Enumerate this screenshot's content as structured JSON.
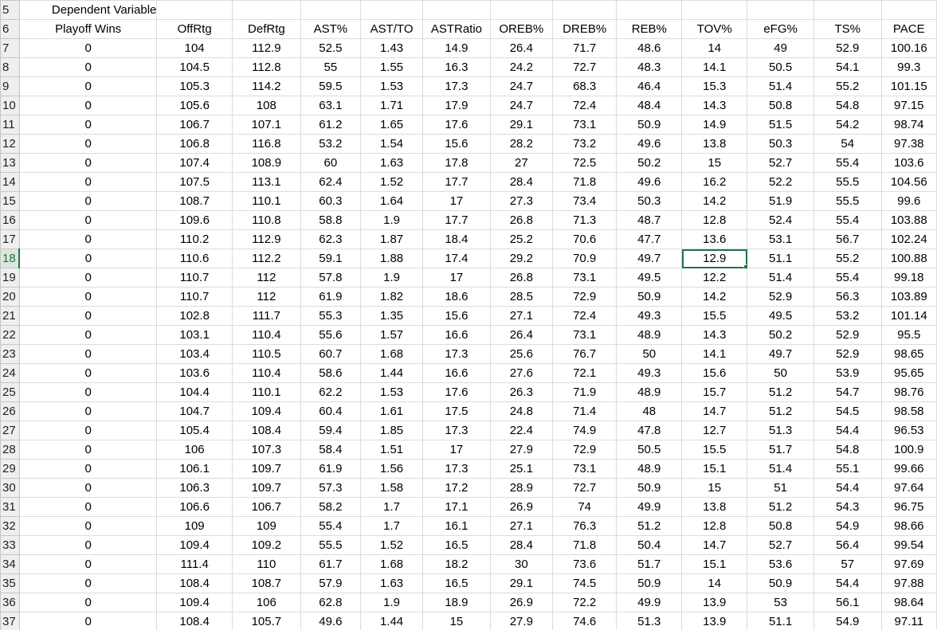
{
  "sheet": {
    "title": "Dependent Variable",
    "title_row": "5",
    "header_row_num": "6",
    "headers": [
      "Playoff Wins",
      "OffRtg",
      "DefRtg",
      "AST%",
      "AST/TO",
      "ASTRatio",
      "OREB%",
      "DREB%",
      "REB%",
      "TOV%",
      "eFG%",
      "TS%",
      "PACE"
    ],
    "selected_row": "18",
    "selected_col": 9,
    "rows": [
      {
        "n": "7",
        "v": [
          "0",
          "104",
          "112.9",
          "52.5",
          "1.43",
          "14.9",
          "26.4",
          "71.7",
          "48.6",
          "14",
          "49",
          "52.9",
          "100.16"
        ]
      },
      {
        "n": "8",
        "v": [
          "0",
          "104.5",
          "112.8",
          "55",
          "1.55",
          "16.3",
          "24.2",
          "72.7",
          "48.3",
          "14.1",
          "50.5",
          "54.1",
          "99.3"
        ]
      },
      {
        "n": "9",
        "v": [
          "0",
          "105.3",
          "114.2",
          "59.5",
          "1.53",
          "17.3",
          "24.7",
          "68.3",
          "46.4",
          "15.3",
          "51.4",
          "55.2",
          "101.15"
        ]
      },
      {
        "n": "10",
        "v": [
          "0",
          "105.6",
          "108",
          "63.1",
          "1.71",
          "17.9",
          "24.7",
          "72.4",
          "48.4",
          "14.3",
          "50.8",
          "54.8",
          "97.15"
        ]
      },
      {
        "n": "11",
        "v": [
          "0",
          "106.7",
          "107.1",
          "61.2",
          "1.65",
          "17.6",
          "29.1",
          "73.1",
          "50.9",
          "14.9",
          "51.5",
          "54.2",
          "98.74"
        ]
      },
      {
        "n": "12",
        "v": [
          "0",
          "106.8",
          "116.8",
          "53.2",
          "1.54",
          "15.6",
          "28.2",
          "73.2",
          "49.6",
          "13.8",
          "50.3",
          "54",
          "97.38"
        ]
      },
      {
        "n": "13",
        "v": [
          "0",
          "107.4",
          "108.9",
          "60",
          "1.63",
          "17.8",
          "27",
          "72.5",
          "50.2",
          "15",
          "52.7",
          "55.4",
          "103.6"
        ]
      },
      {
        "n": "14",
        "v": [
          "0",
          "107.5",
          "113.1",
          "62.4",
          "1.52",
          "17.7",
          "28.4",
          "71.8",
          "49.6",
          "16.2",
          "52.2",
          "55.5",
          "104.56"
        ]
      },
      {
        "n": "15",
        "v": [
          "0",
          "108.7",
          "110.1",
          "60.3",
          "1.64",
          "17",
          "27.3",
          "73.4",
          "50.3",
          "14.2",
          "51.9",
          "55.5",
          "99.6"
        ]
      },
      {
        "n": "16",
        "v": [
          "0",
          "109.6",
          "110.8",
          "58.8",
          "1.9",
          "17.7",
          "26.8",
          "71.3",
          "48.7",
          "12.8",
          "52.4",
          "55.4",
          "103.88"
        ]
      },
      {
        "n": "17",
        "v": [
          "0",
          "110.2",
          "112.9",
          "62.3",
          "1.87",
          "18.4",
          "25.2",
          "70.6",
          "47.7",
          "13.6",
          "53.1",
          "56.7",
          "102.24"
        ]
      },
      {
        "n": "18",
        "v": [
          "0",
          "110.6",
          "112.2",
          "59.1",
          "1.88",
          "17.4",
          "29.2",
          "70.9",
          "49.7",
          "12.9",
          "51.1",
          "55.2",
          "100.88"
        ]
      },
      {
        "n": "19",
        "v": [
          "0",
          "110.7",
          "112",
          "57.8",
          "1.9",
          "17",
          "26.8",
          "73.1",
          "49.5",
          "12.2",
          "51.4",
          "55.4",
          "99.18"
        ]
      },
      {
        "n": "20",
        "v": [
          "0",
          "110.7",
          "112",
          "61.9",
          "1.82",
          "18.6",
          "28.5",
          "72.9",
          "50.9",
          "14.2",
          "52.9",
          "56.3",
          "103.89"
        ]
      },
      {
        "n": "21",
        "v": [
          "0",
          "102.8",
          "111.7",
          "55.3",
          "1.35",
          "15.6",
          "27.1",
          "72.4",
          "49.3",
          "15.5",
          "49.5",
          "53.2",
          "101.14"
        ]
      },
      {
        "n": "22",
        "v": [
          "0",
          "103.1",
          "110.4",
          "55.6",
          "1.57",
          "16.6",
          "26.4",
          "73.1",
          "48.9",
          "14.3",
          "50.2",
          "52.9",
          "95.5"
        ]
      },
      {
        "n": "23",
        "v": [
          "0",
          "103.4",
          "110.5",
          "60.7",
          "1.68",
          "17.3",
          "25.6",
          "76.7",
          "50",
          "14.1",
          "49.7",
          "52.9",
          "98.65"
        ]
      },
      {
        "n": "24",
        "v": [
          "0",
          "103.6",
          "110.4",
          "58.6",
          "1.44",
          "16.6",
          "27.6",
          "72.1",
          "49.3",
          "15.6",
          "50",
          "53.9",
          "95.65"
        ]
      },
      {
        "n": "25",
        "v": [
          "0",
          "104.4",
          "110.1",
          "62.2",
          "1.53",
          "17.6",
          "26.3",
          "71.9",
          "48.9",
          "15.7",
          "51.2",
          "54.7",
          "98.76"
        ]
      },
      {
        "n": "26",
        "v": [
          "0",
          "104.7",
          "109.4",
          "60.4",
          "1.61",
          "17.5",
          "24.8",
          "71.4",
          "48",
          "14.7",
          "51.2",
          "54.5",
          "98.58"
        ]
      },
      {
        "n": "27",
        "v": [
          "0",
          "105.4",
          "108.4",
          "59.4",
          "1.85",
          "17.3",
          "22.4",
          "74.9",
          "47.8",
          "12.7",
          "51.3",
          "54.4",
          "96.53"
        ]
      },
      {
        "n": "28",
        "v": [
          "0",
          "106",
          "107.3",
          "58.4",
          "1.51",
          "17",
          "27.9",
          "72.9",
          "50.5",
          "15.5",
          "51.7",
          "54.8",
          "100.9"
        ]
      },
      {
        "n": "29",
        "v": [
          "0",
          "106.1",
          "109.7",
          "61.9",
          "1.56",
          "17.3",
          "25.1",
          "73.1",
          "48.9",
          "15.1",
          "51.4",
          "55.1",
          "99.66"
        ]
      },
      {
        "n": "30",
        "v": [
          "0",
          "106.3",
          "109.7",
          "57.3",
          "1.58",
          "17.2",
          "28.9",
          "72.7",
          "50.9",
          "15",
          "51",
          "54.4",
          "97.64"
        ]
      },
      {
        "n": "31",
        "v": [
          "0",
          "106.6",
          "106.7",
          "58.2",
          "1.7",
          "17.1",
          "26.9",
          "74",
          "49.9",
          "13.8",
          "51.2",
          "54.3",
          "96.75"
        ]
      },
      {
        "n": "32",
        "v": [
          "0",
          "109",
          "109",
          "55.4",
          "1.7",
          "16.1",
          "27.1",
          "76.3",
          "51.2",
          "12.8",
          "50.8",
          "54.9",
          "98.66"
        ]
      },
      {
        "n": "33",
        "v": [
          "0",
          "109.4",
          "109.2",
          "55.5",
          "1.52",
          "16.5",
          "28.4",
          "71.8",
          "50.4",
          "14.7",
          "52.7",
          "56.4",
          "99.54"
        ]
      },
      {
        "n": "34",
        "v": [
          "0",
          "111.4",
          "110",
          "61.7",
          "1.68",
          "18.2",
          "30",
          "73.6",
          "51.7",
          "15.1",
          "53.6",
          "57",
          "97.69"
        ]
      },
      {
        "n": "35",
        "v": [
          "0",
          "108.4",
          "108.7",
          "57.9",
          "1.63",
          "16.5",
          "29.1",
          "74.5",
          "50.9",
          "14",
          "50.9",
          "54.4",
          "97.88"
        ]
      },
      {
        "n": "36",
        "v": [
          "0",
          "109.4",
          "106",
          "62.8",
          "1.9",
          "18.9",
          "26.9",
          "72.2",
          "49.9",
          "13.9",
          "53",
          "56.1",
          "98.64"
        ]
      },
      {
        "n": "37",
        "v": [
          "0",
          "108.4",
          "105.7",
          "49.6",
          "1.44",
          "15",
          "27.9",
          "74.6",
          "51.3",
          "13.9",
          "51.1",
          "54.9",
          "97.11"
        ]
      }
    ]
  }
}
